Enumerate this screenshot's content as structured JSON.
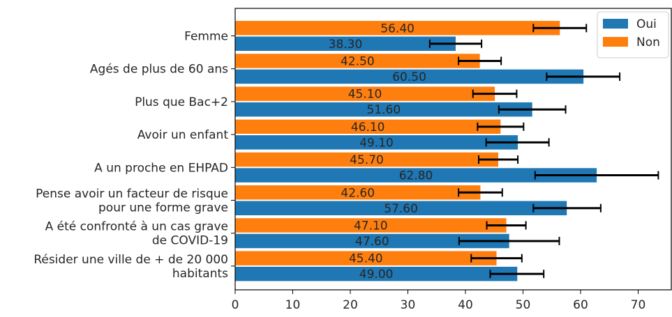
{
  "chart_data": {
    "type": "bar",
    "orientation": "horizontal",
    "categories": [
      [
        "Femme"
      ],
      [
        "Agés de plus de 60 ans"
      ],
      [
        "Plus que Bac+2"
      ],
      [
        "Avoir un enfant"
      ],
      [
        "A un proche en EHPAD"
      ],
      [
        "Pense avoir un facteur de risque",
        "pour une forme grave"
      ],
      [
        "A été confronté à un cas grave",
        "de COVID-19"
      ],
      [
        "Résider une ville de + de 20 000",
        "habitants"
      ]
    ],
    "series": [
      {
        "name": "Oui",
        "color": "#1f77b4",
        "values": [
          38.3,
          60.5,
          51.6,
          49.1,
          62.8,
          57.6,
          47.6,
          49.0
        ],
        "value_labels": [
          "38.30",
          "60.50",
          "51.60",
          "49.10",
          "62.80",
          "57.60",
          "47.60",
          "49.00"
        ],
        "error_low": [
          33.8,
          54.1,
          45.8,
          43.6,
          52.1,
          51.8,
          38.9,
          44.3
        ],
        "error_high": [
          42.8,
          66.8,
          57.4,
          54.5,
          73.5,
          63.5,
          56.3,
          53.6
        ]
      },
      {
        "name": "Non",
        "color": "#ff7f0e",
        "values": [
          56.4,
          42.5,
          45.1,
          46.1,
          45.7,
          42.6,
          47.1,
          45.4
        ],
        "value_labels": [
          "56.40",
          "42.50",
          "45.10",
          "46.10",
          "45.70",
          "42.60",
          "47.10",
          "45.40"
        ],
        "error_low": [
          51.8,
          38.8,
          41.3,
          42.1,
          42.3,
          38.8,
          43.7,
          41.0
        ],
        "error_high": [
          61.0,
          46.2,
          48.9,
          50.1,
          49.1,
          46.4,
          50.5,
          49.8
        ]
      }
    ],
    "xlim": [
      0,
      76
    ],
    "xticks": [
      0,
      10,
      20,
      30,
      40,
      50,
      60,
      70
    ],
    "xlabel": "",
    "ylabel": "",
    "title": "",
    "grid": false,
    "legend_position": "top-right"
  }
}
